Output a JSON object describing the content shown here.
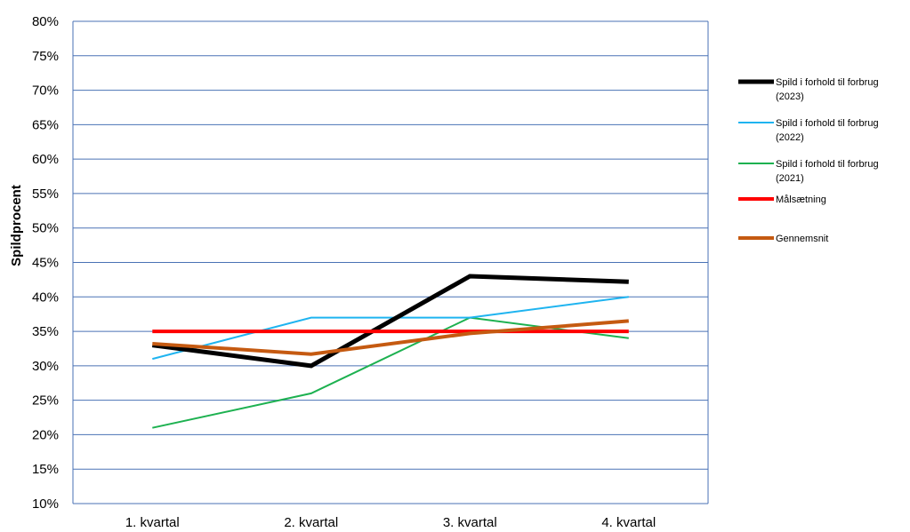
{
  "chart_data": {
    "type": "line",
    "categories": [
      "1. kvartal",
      "2. kvartal",
      "3. kvartal",
      "4. kvartal"
    ],
    "ylabel": "Spildprocent",
    "xlabel": "",
    "ylim": [
      0.1,
      0.8
    ],
    "yticks": [
      0.1,
      0.15,
      0.2,
      0.25,
      0.3,
      0.35,
      0.4,
      0.45,
      0.5,
      0.55,
      0.6,
      0.65,
      0.7,
      0.75,
      0.8
    ],
    "ytick_labels": [
      "10%",
      "15%",
      "20%",
      "25%",
      "30%",
      "35%",
      "40%",
      "45%",
      "50%",
      "55%",
      "60%",
      "65%",
      "70%",
      "75%",
      "80%"
    ],
    "grid": true,
    "legend_position": "right",
    "series": [
      {
        "name_lines": [
          "Spild i forhold til forbrug",
          "(2023)"
        ],
        "color": "#000000",
        "values": [
          0.33,
          0.3,
          0.43,
          0.422
        ]
      },
      {
        "name_lines": [
          "Spild i forhold til forbrug",
          "(2022)"
        ],
        "color": "#1fb4f0",
        "values": [
          0.31,
          0.37,
          0.37,
          0.4
        ]
      },
      {
        "name_lines": [
          "Spild i forhold til forbrug",
          "(2021)"
        ],
        "color": "#1db150",
        "values": [
          0.21,
          0.26,
          0.37,
          0.34
        ]
      },
      {
        "name_lines": [
          "Målsætning"
        ],
        "color": "#ff0000",
        "values": [
          0.35,
          0.35,
          0.35,
          0.35
        ]
      },
      {
        "name_lines": [
          "Gennemsnit"
        ],
        "color": "#c55a11",
        "values": [
          0.332,
          0.317,
          0.347,
          0.365
        ]
      }
    ]
  }
}
